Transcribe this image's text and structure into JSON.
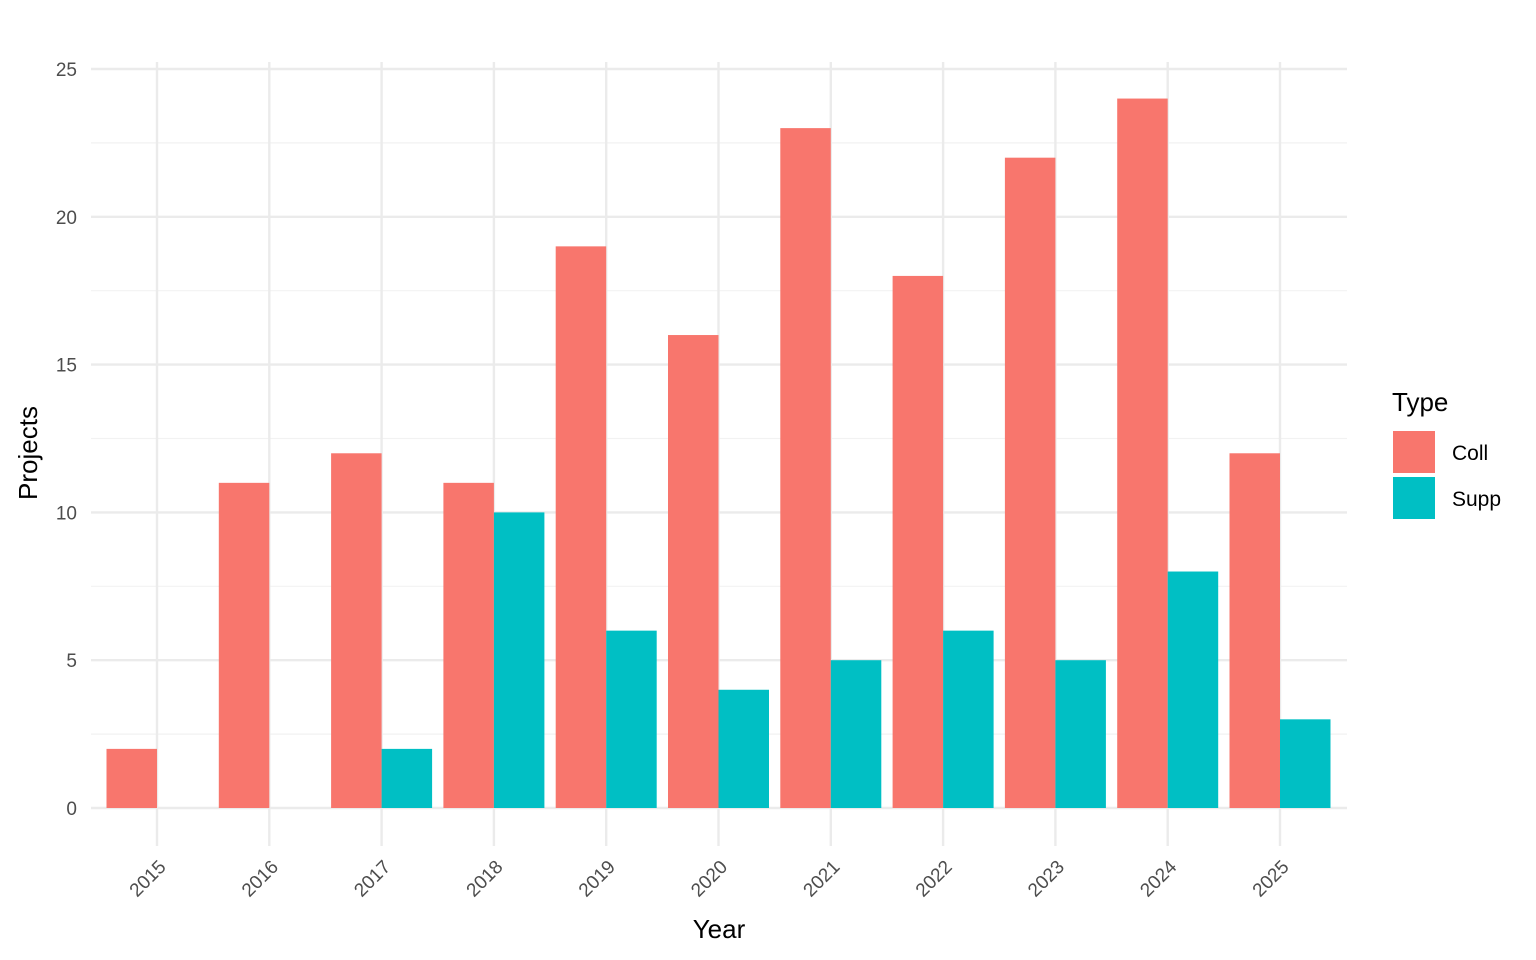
{
  "chart_data": {
    "type": "bar",
    "categories": [
      "2015",
      "2016",
      "2017",
      "2018",
      "2019",
      "2020",
      "2021",
      "2022",
      "2023",
      "2024",
      "2025"
    ],
    "series": [
      {
        "name": "Coll",
        "color": "#F8766D",
        "values": [
          2,
          11,
          12,
          11,
          19,
          16,
          23,
          18,
          22,
          24,
          12
        ]
      },
      {
        "name": "Supp",
        "color": "#00BFC4",
        "values": [
          0,
          0,
          2,
          10,
          6,
          4,
          5,
          6,
          5,
          8,
          3
        ]
      }
    ],
    "xlabel": "Year",
    "ylabel": "Projects",
    "ylim": [
      0,
      25
    ],
    "yticks": [
      0,
      5,
      10,
      15,
      20,
      25
    ],
    "legend": {
      "title": "Type",
      "position": "right"
    },
    "grid": true,
    "x_tick_rotation": "45deg"
  }
}
